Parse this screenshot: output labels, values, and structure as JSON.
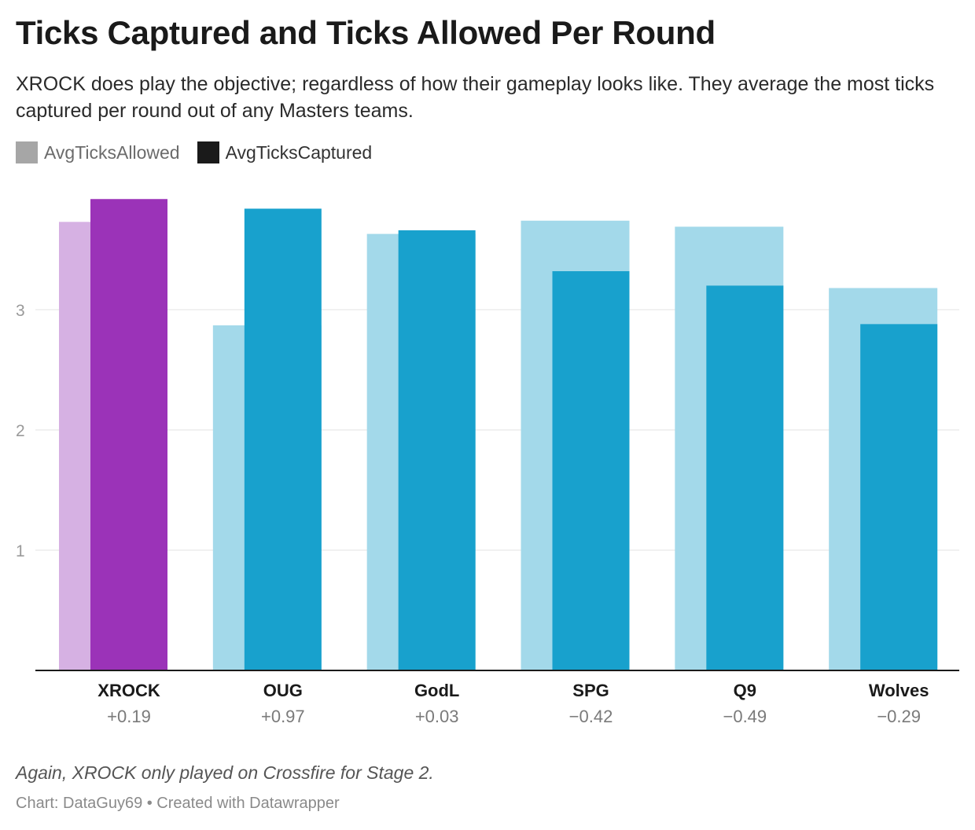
{
  "header": {
    "title": "Ticks Captured and Ticks Allowed Per Round",
    "subtitle": "XROCK does play the objective; regardless of how their gameplay looks like. They average the most ticks captured per round out of any Masters teams."
  },
  "legend": {
    "allowed_label": "AvgTicksAllowed",
    "captured_label": "AvgTicksCaptured",
    "allowed_color": "#a6a6a6",
    "captured_color": "#1a1a1a"
  },
  "chart_data": {
    "type": "bar",
    "categories": [
      "XROCK",
      "OUG",
      "GodL",
      "SPG",
      "Q9",
      "Wolves"
    ],
    "differences": [
      "+0.19",
      "+0.97",
      "+0.03",
      "−0.42",
      "−0.49",
      "−0.29"
    ],
    "series": [
      {
        "name": "AvgTicksAllowed",
        "values": [
          3.73,
          2.87,
          3.63,
          3.74,
          3.69,
          3.18
        ]
      },
      {
        "name": "AvgTicksCaptured",
        "values": [
          3.92,
          3.84,
          3.66,
          3.32,
          3.2,
          2.88
        ]
      }
    ],
    "highlight_category": "XROCK",
    "colors": {
      "highlight_allowed": "#d6b1e3",
      "highlight_captured": "#9b33b8",
      "allowed": "#a3d9ea",
      "captured": "#18a1cd"
    },
    "yticks": [
      1,
      2,
      3
    ],
    "ylim": [
      0,
      4
    ],
    "grid": true,
    "legend_position": "top-left"
  },
  "footer": {
    "note": "Again, XROCK only played on Crossfire for Stage 2.",
    "credit": "Chart: DataGuy69 • Created with Datawrapper"
  }
}
